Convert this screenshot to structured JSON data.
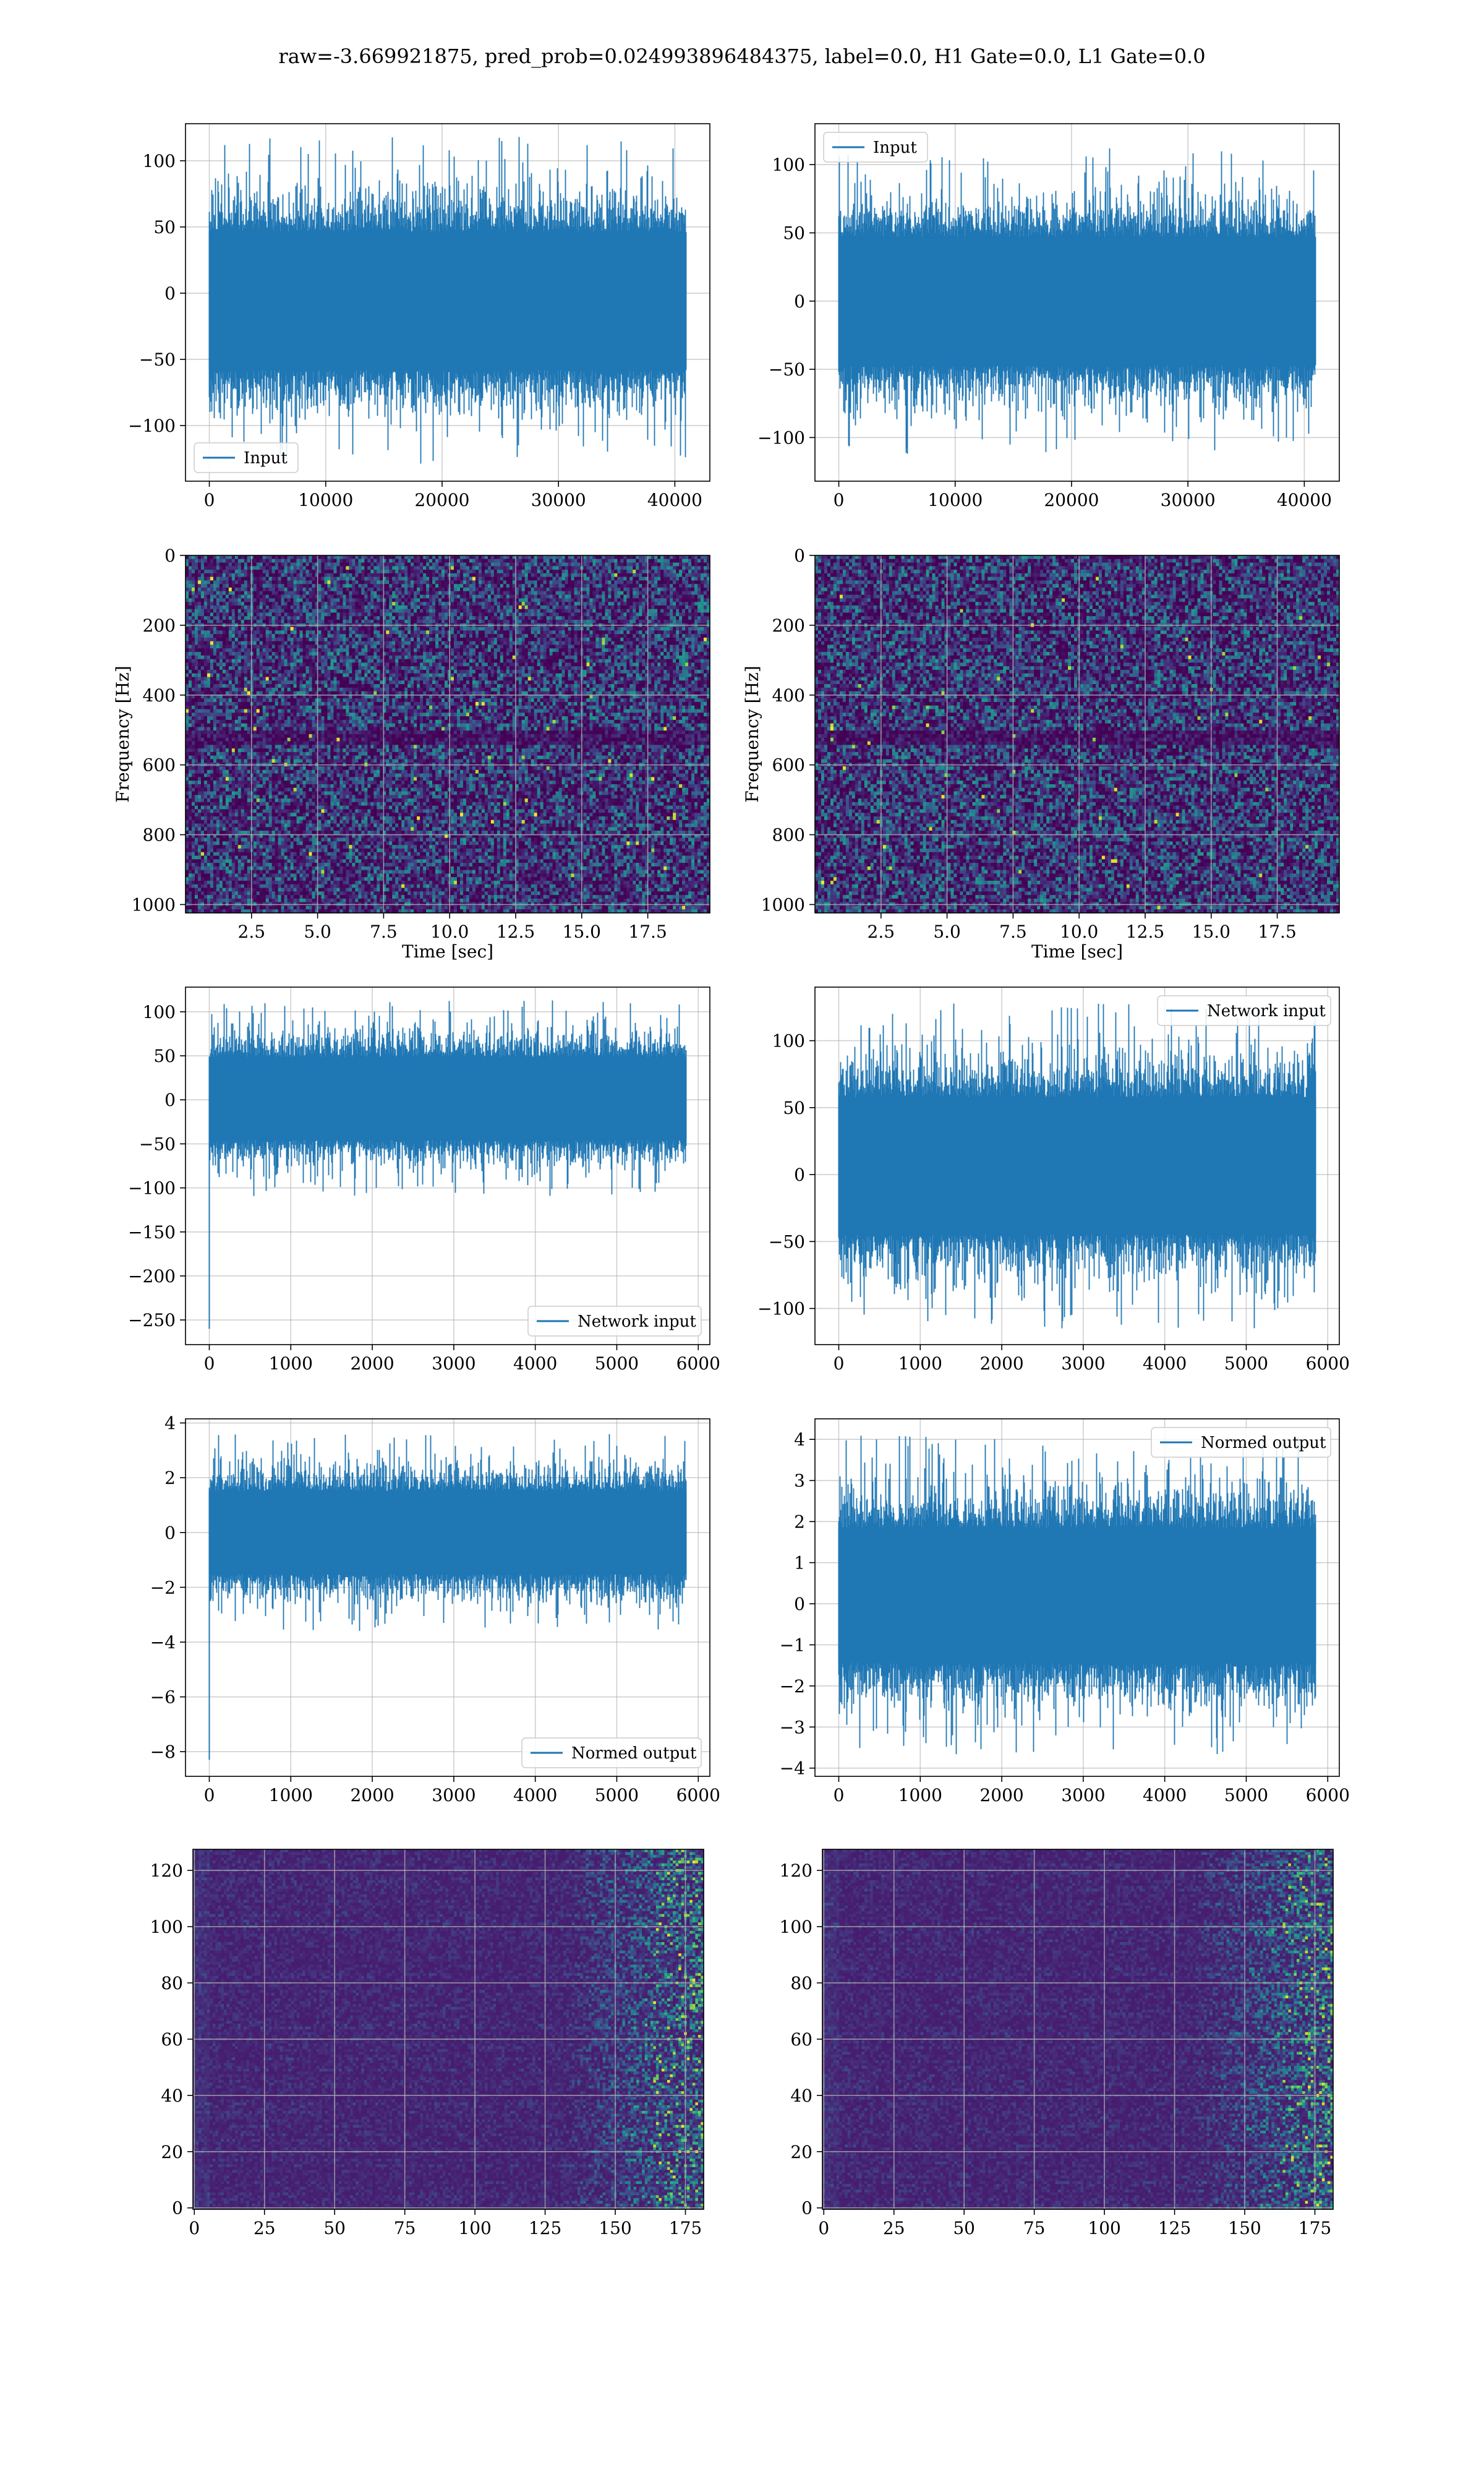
{
  "figure": {
    "suptitle": "raw=-3.669921875, pred_prob=0.024993896484375, label=0.0, H1 Gate=0.0, L1 Gate=0.0",
    "line_color": "#1f77b4",
    "colormap": "viridis",
    "grid": true
  },
  "chart_data": [
    {
      "id": "input-h1",
      "type": "line",
      "position": "row1-left",
      "series": [
        {
          "name": "Input",
          "n_samples": 40960,
          "amplitude_range": [
            -130,
            118
          ]
        }
      ],
      "x": {
        "ticks": [
          0,
          10000,
          20000,
          30000,
          40000
        ],
        "lim": [
          -2048,
          43008
        ]
      },
      "y": {
        "ticks": [
          -100,
          -50,
          0,
          50,
          100
        ],
        "lim": [
          -142,
          128
        ]
      },
      "xlabel": "",
      "ylabel": "",
      "legend": "lower-left"
    },
    {
      "id": "input-l1",
      "type": "line",
      "position": "row1-right",
      "series": [
        {
          "name": "Input",
          "n_samples": 40960,
          "amplitude_range": [
            -112,
            112
          ]
        }
      ],
      "x": {
        "ticks": [
          0,
          10000,
          20000,
          30000,
          40000
        ],
        "lim": [
          -2048,
          43008
        ]
      },
      "y": {
        "ticks": [
          -100,
          -50,
          0,
          50,
          100
        ],
        "lim": [
          -132,
          130
        ]
      },
      "xlabel": "",
      "ylabel": "",
      "legend": "upper-left"
    },
    {
      "id": "spectrogram-h1",
      "type": "heatmap",
      "position": "row2-left",
      "x": {
        "ticks": [
          2.5,
          5.0,
          7.5,
          10.0,
          12.5,
          15.0,
          17.5
        ],
        "tick_labels": [
          "2.5",
          "5.0",
          "7.5",
          "10.0",
          "12.5",
          "15.0",
          "17.5"
        ],
        "lim": [
          0.0,
          19.85
        ]
      },
      "y": {
        "ticks": [
          0,
          200,
          400,
          600,
          800,
          1000
        ],
        "lim": [
          0,
          1024
        ]
      },
      "xlabel": "Time [sec]",
      "ylabel": "Frequency [Hz]"
    },
    {
      "id": "spectrogram-l1",
      "type": "heatmap",
      "position": "row2-right",
      "x": {
        "ticks": [
          2.5,
          5.0,
          7.5,
          10.0,
          12.5,
          15.0,
          17.5
        ],
        "tick_labels": [
          "2.5",
          "5.0",
          "7.5",
          "10.0",
          "12.5",
          "15.0",
          "17.5"
        ],
        "lim": [
          0.0,
          19.85
        ]
      },
      "y": {
        "ticks": [
          0,
          200,
          400,
          600,
          800,
          1000
        ],
        "lim": [
          0,
          1024
        ]
      },
      "xlabel": "Time [sec]",
      "ylabel": "Frequency [Hz]"
    },
    {
      "id": "network-input-h1",
      "type": "line",
      "position": "row3-left",
      "series": [
        {
          "name": "Network input",
          "n_samples": 5850,
          "amplitude_range": [
            -110,
            113
          ],
          "initial_spike": -260
        }
      ],
      "x": {
        "ticks": [
          0,
          1000,
          2000,
          3000,
          4000,
          5000,
          6000
        ],
        "lim": [
          -292,
          6142
        ]
      },
      "y": {
        "ticks": [
          -250,
          -200,
          -150,
          -100,
          -50,
          0,
          50,
          100
        ],
        "lim": [
          -278,
          128
        ]
      },
      "xlabel": "",
      "ylabel": "",
      "legend": "lower-right"
    },
    {
      "id": "network-input-l1",
      "type": "line",
      "position": "row3-right",
      "series": [
        {
          "name": "Network input",
          "n_samples": 5850,
          "amplitude_range": [
            -115,
            128
          ]
        }
      ],
      "x": {
        "ticks": [
          0,
          1000,
          2000,
          3000,
          4000,
          5000,
          6000
        ],
        "lim": [
          -292,
          6142
        ]
      },
      "y": {
        "ticks": [
          -100,
          -50,
          0,
          50,
          100
        ],
        "lim": [
          -127,
          140
        ]
      },
      "xlabel": "",
      "ylabel": "",
      "legend": "upper-right"
    },
    {
      "id": "normed-output-h1",
      "type": "line",
      "position": "row4-left",
      "series": [
        {
          "name": "Normed output",
          "n_samples": 5850,
          "amplitude_range": [
            -3.6,
            3.6
          ],
          "initial_spike": -8.3
        }
      ],
      "x": {
        "ticks": [
          0,
          1000,
          2000,
          3000,
          4000,
          5000,
          6000
        ],
        "lim": [
          -292,
          6142
        ]
      },
      "y": {
        "ticks": [
          -8,
          -6,
          -4,
          -2,
          0,
          2,
          4
        ],
        "lim": [
          -8.9,
          4.15
        ]
      },
      "xlabel": "",
      "ylabel": "",
      "legend": "lower-right"
    },
    {
      "id": "normed-output-l1",
      "type": "line",
      "position": "row4-right",
      "series": [
        {
          "name": "Normed output",
          "n_samples": 5850,
          "amplitude_range": [
            -3.7,
            4.1
          ]
        }
      ],
      "x": {
        "ticks": [
          0,
          1000,
          2000,
          3000,
          4000,
          5000,
          6000
        ],
        "lim": [
          -292,
          6142
        ]
      },
      "y": {
        "ticks": [
          -4,
          -3,
          -2,
          -1,
          0,
          1,
          2,
          3,
          4
        ],
        "lim": [
          -4.2,
          4.5
        ]
      },
      "xlabel": "",
      "ylabel": "",
      "legend": "upper-right"
    },
    {
      "id": "feature-map-h1",
      "type": "heatmap",
      "position": "row5-left",
      "shape": [
        128,
        182
      ],
      "x": {
        "ticks": [
          0,
          25,
          50,
          75,
          100,
          125,
          150,
          175
        ],
        "lim": [
          -0.5,
          181.5
        ]
      },
      "y": {
        "ticks": [
          0,
          20,
          40,
          60,
          80,
          100,
          120
        ],
        "lim": [
          127.5,
          -0.5
        ]
      },
      "xlabel": "",
      "ylabel": ""
    },
    {
      "id": "feature-map-l1",
      "type": "heatmap",
      "position": "row5-right",
      "shape": [
        128,
        182
      ],
      "x": {
        "ticks": [
          0,
          25,
          50,
          75,
          100,
          125,
          150,
          175
        ],
        "lim": [
          -0.5,
          181.5
        ]
      },
      "y": {
        "ticks": [
          0,
          20,
          40,
          60,
          80,
          100,
          120
        ],
        "lim": [
          127.5,
          -0.5
        ]
      },
      "xlabel": "",
      "ylabel": ""
    }
  ]
}
